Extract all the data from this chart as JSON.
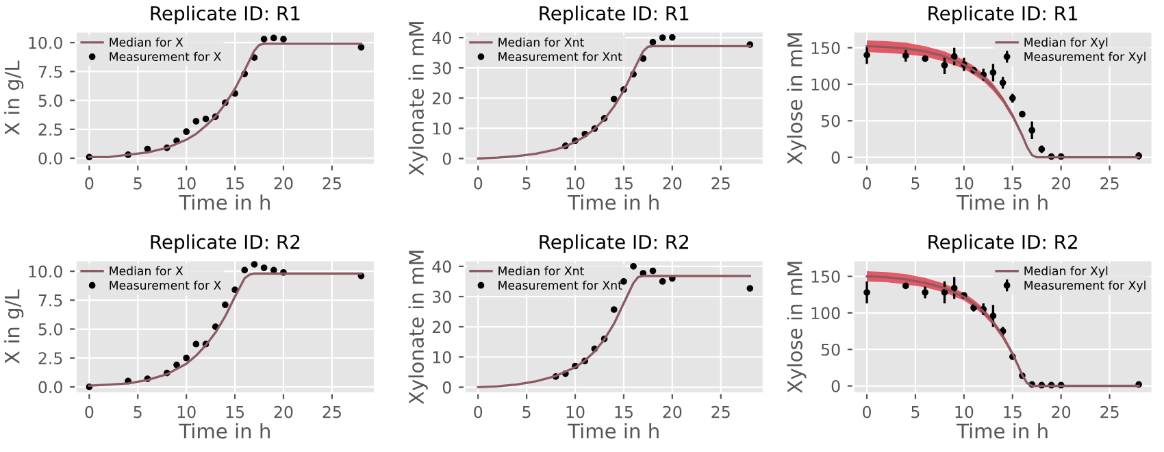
{
  "chart_data": [
    {
      "type": "line",
      "title": "Replicate ID: R1",
      "xlabel": "Time in h",
      "ylabel": "X in g/L",
      "xlim": [
        -1.4,
        29.4
      ],
      "ylim": [
        -0.55,
        10.95
      ],
      "xticks": [
        0,
        5,
        10,
        15,
        20,
        25
      ],
      "yticks": [
        {
          "value": 0,
          "label": "0.0"
        },
        2.5,
        {
          "value": 5,
          "label": "5.0"
        },
        7.5,
        {
          "value": 10,
          "label": "10.0"
        }
      ],
      "grid": true,
      "legend": "top left",
      "series": [
        {
          "name": "Median for X",
          "color": "#8c5a62",
          "x": [
            0,
            2,
            4,
            6,
            8,
            10,
            11,
            12,
            13,
            14,
            15,
            16,
            17,
            17.5,
            18,
            28
          ],
          "values": [
            0.1,
            0.1,
            0.3,
            0.5,
            0.9,
            1.6,
            2.1,
            2.8,
            3.6,
            4.7,
            6.0,
            7.6,
            9.3,
            9.8,
            9.9,
            9.9
          ]
        },
        {
          "name": "Measurement for X",
          "type": "scatter",
          "color": "#000000",
          "marker": "circle",
          "x": [
            0,
            4,
            6,
            8,
            9,
            10,
            11,
            12,
            13,
            14,
            15,
            16,
            17,
            18,
            19,
            20,
            28
          ],
          "values": [
            0.1,
            0.3,
            0.8,
            0.9,
            1.5,
            2.3,
            3.2,
            3.4,
            3.6,
            4.8,
            5.6,
            7.3,
            8.7,
            10.3,
            10.4,
            10.3,
            9.6
          ]
        }
      ]
    },
    {
      "type": "line",
      "title": "Replicate ID: R1",
      "xlabel": "Time in h",
      "ylabel": "Xylonate in mM",
      "xlim": [
        -1.4,
        29.4
      ],
      "ylim": [
        -2,
        42
      ],
      "xticks": [
        0,
        5,
        10,
        15,
        20,
        25
      ],
      "yticks": [
        0,
        10,
        20,
        30,
        40
      ],
      "grid": true,
      "legend": "top left",
      "series": [
        {
          "name": "Median for Xnt",
          "color": "#8c5a62",
          "x": [
            0,
            2,
            4,
            6,
            8,
            9,
            10,
            11,
            12,
            13,
            14,
            15,
            16,
            17,
            17.5,
            18,
            28
          ],
          "values": [
            0,
            0.3,
            0.8,
            1.6,
            3.0,
            4.0,
            5.5,
            7.3,
            9.8,
            13,
            17.2,
            22.5,
            29,
            35.5,
            37,
            37.2,
            37.2
          ]
        },
        {
          "name": "Measurement for Xnt",
          "type": "scatter",
          "color": "#000000",
          "marker": "circle",
          "x": [
            9,
            10,
            11,
            12,
            13,
            14,
            15,
            16,
            17,
            18,
            19,
            20,
            28
          ],
          "values": [
            4.2,
            5.9,
            8.1,
            9.9,
            13.3,
            19.7,
            22.8,
            27.9,
            33.1,
            38.5,
            40,
            40.1,
            37.7
          ]
        }
      ]
    },
    {
      "type": "line",
      "title": "Replicate ID: R1",
      "xlabel": "Time in h",
      "ylabel": "Xylose in mM",
      "xlim": [
        -1.4,
        29.4
      ],
      "ylim": [
        -10,
        172
      ],
      "xticks": [
        0,
        5,
        10,
        15,
        20,
        25
      ],
      "yticks": [
        0,
        50,
        100,
        150
      ],
      "grid": true,
      "legend": "top right",
      "series": [
        {
          "name": "Median for Xyl",
          "color": "#8c5a62",
          "x": [
            0,
            2,
            4,
            6,
            8,
            10,
            11,
            12,
            13,
            14,
            15,
            16,
            16.5,
            17,
            17.5,
            18,
            28
          ],
          "values": [
            152,
            151,
            149,
            145,
            138,
            127,
            119,
            109,
            96,
            79,
            57,
            30,
            14,
            3,
            0,
            0,
            0
          ],
          "lower": [
            144,
            143,
            141,
            138,
            131,
            121,
            113,
            104,
            91,
            75,
            53,
            27,
            12,
            2,
            0,
            0,
            0
          ],
          "upper": [
            160,
            159,
            157,
            152,
            145,
            133,
            125,
            114,
            101,
            83,
            61,
            33,
            16,
            4,
            1,
            0,
            0
          ]
        },
        {
          "name": "Measurement for Xyl",
          "type": "scatter",
          "color": "#000000",
          "marker": "circle",
          "x": [
            0,
            4,
            6,
            8,
            9,
            10,
            11,
            12,
            13,
            14,
            15,
            16,
            17,
            18,
            19,
            20,
            28
          ],
          "values": [
            140,
            139,
            135,
            126,
            138,
            127,
            119,
            113,
            116,
            102,
            81,
            59,
            37,
            11,
            1,
            1,
            2
          ],
          "errors": [
            12,
            8,
            2,
            12,
            12,
            9,
            3,
            8,
            12,
            8,
            6,
            2,
            12,
            5,
            2,
            2,
            5
          ]
        }
      ]
    },
    {
      "type": "line",
      "title": "Replicate ID: R2",
      "xlabel": "Time in h",
      "ylabel": "X in g/L",
      "xlim": [
        -1.4,
        29.4
      ],
      "ylim": [
        -0.55,
        10.95
      ],
      "xticks": [
        0,
        5,
        10,
        15,
        20,
        25
      ],
      "yticks": [
        {
          "value": 0,
          "label": "0.0"
        },
        2.5,
        {
          "value": 5,
          "label": "5.0"
        },
        7.5,
        {
          "value": 10,
          "label": "10.0"
        }
      ],
      "grid": true,
      "legend": "top left",
      "series": [
        {
          "name": "Median for X",
          "color": "#8c5a62",
          "x": [
            0,
            2,
            4,
            6,
            8,
            10,
            11,
            12,
            13,
            14,
            15,
            16,
            16.5,
            17,
            28
          ],
          "values": [
            0.1,
            0.2,
            0.3,
            0.6,
            1.1,
            2.0,
            2.7,
            3.6,
            4.7,
            6.1,
            7.8,
            9.4,
            9.7,
            9.8,
            9.8
          ]
        },
        {
          "name": "Measurement for X",
          "type": "scatter",
          "color": "#000000",
          "marker": "circle",
          "x": [
            0,
            4,
            6,
            8,
            9,
            10,
            11,
            12,
            13,
            14,
            15,
            16,
            17,
            18,
            19,
            20,
            28
          ],
          "values": [
            0,
            0.5,
            0.7,
            1.2,
            1.9,
            2.5,
            3.7,
            3.7,
            5.2,
            7.1,
            8.4,
            10.1,
            10.6,
            10.3,
            10.1,
            9.9,
            9.6
          ]
        }
      ]
    },
    {
      "type": "line",
      "title": "Replicate ID: R2",
      "xlabel": "Time in h",
      "ylabel": "Xylonate in mM",
      "xlim": [
        -1.4,
        29.4
      ],
      "ylim": [
        -2,
        42
      ],
      "xticks": [
        0,
        5,
        10,
        15,
        20,
        25
      ],
      "yticks": [
        0,
        10,
        20,
        30,
        40
      ],
      "grid": true,
      "legend": "top left",
      "series": [
        {
          "name": "Median for Xnt",
          "color": "#8c5a62",
          "x": [
            0,
            2,
            4,
            6,
            8,
            10,
            11,
            12,
            13,
            14,
            15,
            16,
            16.5,
            17,
            28
          ],
          "values": [
            0,
            0.3,
            0.9,
            2,
            3.7,
            6.6,
            8.8,
            11.8,
            15.8,
            21,
            27.8,
            34.5,
            36.5,
            36.8,
            36.8
          ]
        },
        {
          "name": "Measurement for Xnt",
          "type": "scatter",
          "color": "#000000",
          "marker": "circle",
          "x": [
            8,
            9,
            10,
            11,
            12,
            13,
            14,
            15,
            16,
            17,
            18,
            19,
            20,
            28
          ],
          "values": [
            3.5,
            4.5,
            7,
            8.7,
            12.7,
            16,
            25.7,
            35,
            40,
            37.7,
            38.5,
            35,
            36,
            32.7
          ]
        }
      ]
    },
    {
      "type": "line",
      "title": "Replicate ID: R2",
      "xlabel": "Time in h",
      "ylabel": "Xylose in mM",
      "xlim": [
        -1.4,
        29.4
      ],
      "ylim": [
        -10,
        172
      ],
      "xticks": [
        0,
        5,
        10,
        15,
        20,
        25
      ],
      "yticks": [
        0,
        50,
        100,
        150
      ],
      "grid": true,
      "legend": "top right",
      "series": [
        {
          "name": "Median for Xyl",
          "color": "#8c5a62",
          "x": [
            0,
            2,
            4,
            6,
            8,
            10,
            11,
            12,
            13,
            14,
            15,
            15.5,
            16,
            16.5,
            17,
            28
          ],
          "values": [
            150,
            149,
            146,
            141,
            134,
            122,
            113,
            102,
            87,
            68,
            44,
            30,
            15,
            4,
            0,
            0
          ],
          "lower": [
            143,
            142,
            139,
            135,
            128,
            117,
            108,
            97,
            83,
            64,
            41,
            28,
            13,
            3,
            0,
            0
          ],
          "upper": [
            157,
            156,
            153,
            148,
            140,
            127,
            118,
            107,
            91,
            72,
            47,
            32,
            17,
            5,
            1,
            0
          ]
        },
        {
          "name": "Measurement for Xyl",
          "type": "scatter",
          "color": "#000000",
          "marker": "circle",
          "x": [
            0,
            4,
            6,
            8,
            9,
            10,
            11,
            12,
            13,
            14,
            15,
            16,
            17,
            18,
            19,
            20,
            28
          ],
          "values": [
            128,
            137,
            128,
            128,
            134,
            124,
            107,
            105,
            96,
            75,
            40,
            14,
            2,
            1,
            1,
            1,
            2
          ],
          "errors": [
            15,
            2,
            8,
            15,
            15,
            3,
            5,
            8,
            15,
            6,
            2,
            3,
            3,
            2,
            2,
            2,
            4
          ]
        }
      ]
    }
  ]
}
